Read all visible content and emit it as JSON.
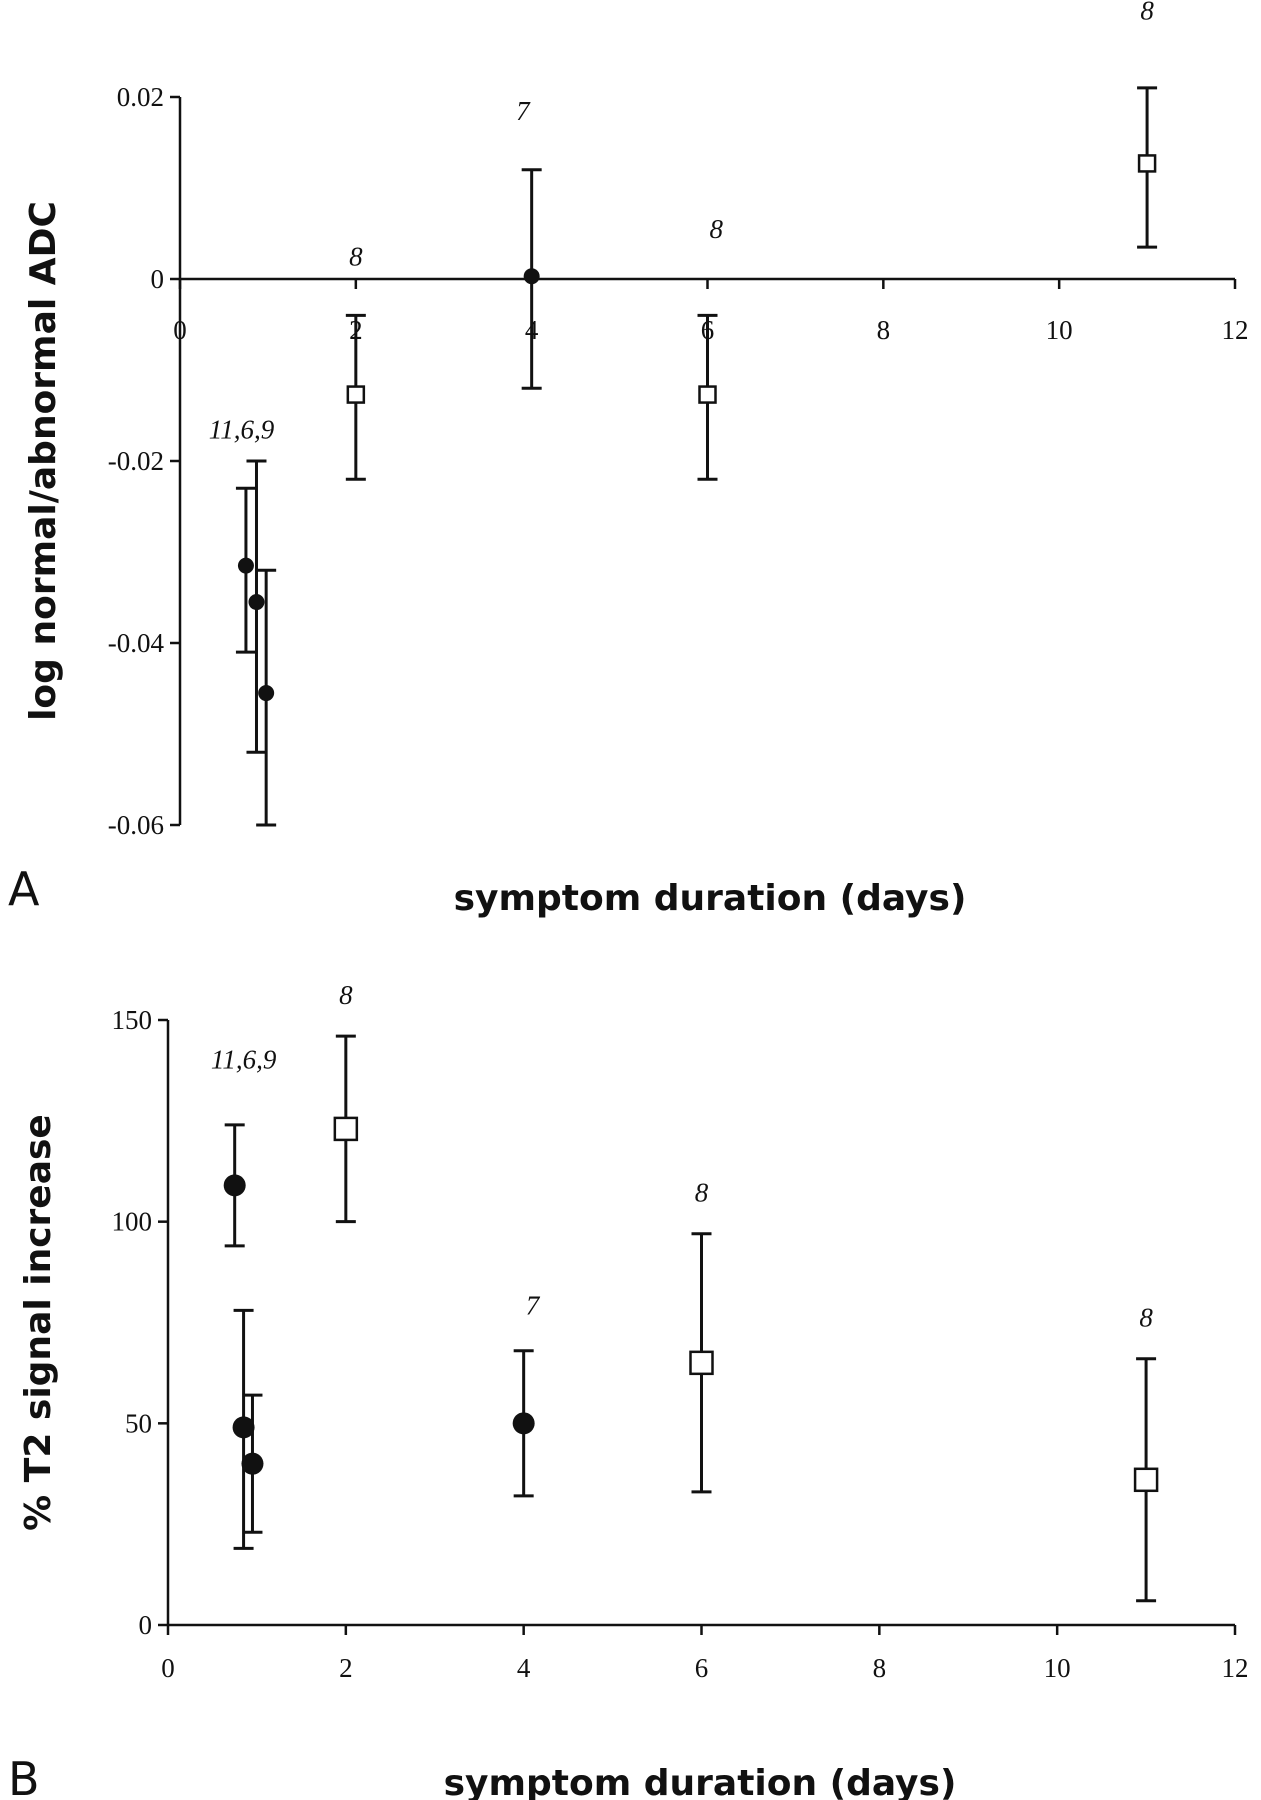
{
  "chart_data": [
    {
      "panel": "A",
      "type": "scatter",
      "xlabel": "symptom duration (days)",
      "ylabel": "log normal/abnormal ADC",
      "xlim": [
        0,
        12
      ],
      "ylim": [
        -0.06,
        0.02
      ],
      "xticks": [
        0,
        2,
        4,
        6,
        8,
        10,
        12
      ],
      "yticks": [
        -0.06,
        -0.04,
        -0.02,
        0,
        0.02
      ],
      "ytick_labels": [
        "-0.06",
        "-0.04",
        "-0.02",
        "0",
        "0.02"
      ],
      "x_axis_at": 0,
      "grid": false,
      "series": [
        {
          "marker": "filled-circle",
          "points": [
            {
              "x": 0.75,
              "y": -0.0315,
              "lo": -0.041,
              "hi": -0.023
            },
            {
              "x": 0.87,
              "y": -0.0355,
              "lo": -0.052,
              "hi": -0.02
            },
            {
              "x": 0.98,
              "y": -0.0455,
              "lo": -0.06,
              "hi": -0.032
            },
            {
              "x": 4.0,
              "y": 0.0003,
              "lo": -0.012,
              "hi": 0.012
            }
          ]
        },
        {
          "marker": "open-square",
          "points": [
            {
              "x": 2.0,
              "y": -0.0127,
              "lo": -0.022,
              "hi": -0.004
            },
            {
              "x": 6.0,
              "y": -0.0127,
              "lo": -0.022,
              "hi": -0.004
            },
            {
              "x": 11.0,
              "y": 0.0127,
              "lo": 0.0035,
              "hi": 0.021
            }
          ]
        }
      ],
      "annotations": [
        {
          "text": "11,6,9",
          "x": 0.7,
          "y": -0.0175
        },
        {
          "text": "8",
          "x": 2.0,
          "y": 0.0015
        },
        {
          "text": "7",
          "x": 3.9,
          "y": 0.0175
        },
        {
          "text": "8",
          "x": 6.1,
          "y": 0.0045
        },
        {
          "text": "8",
          "x": 11.0,
          "y": 0.0285
        }
      ]
    },
    {
      "panel": "B",
      "type": "scatter",
      "xlabel": "symptom duration (days)",
      "ylabel": "% T2 signal increase",
      "xlim": [
        0,
        12
      ],
      "ylim": [
        0,
        150
      ],
      "xticks": [
        0,
        2,
        4,
        6,
        8,
        10,
        12
      ],
      "yticks": [
        0,
        50,
        100,
        150
      ],
      "ytick_labels": [
        "0",
        "50",
        "100",
        "150"
      ],
      "x_axis_at": 0,
      "grid": false,
      "series": [
        {
          "marker": "filled-circle",
          "points": [
            {
              "x": 0.75,
              "y": 109,
              "lo": 94,
              "hi": 124
            },
            {
              "x": 0.85,
              "y": 49,
              "lo": 19,
              "hi": 78
            },
            {
              "x": 0.95,
              "y": 40,
              "lo": 23,
              "hi": 57
            },
            {
              "x": 4.0,
              "y": 50,
              "lo": 32,
              "hi": 68
            }
          ]
        },
        {
          "marker": "open-square",
          "points": [
            {
              "x": 2.0,
              "y": 123,
              "lo": 100,
              "hi": 146
            },
            {
              "x": 6.0,
              "y": 65,
              "lo": 33,
              "hi": 97
            },
            {
              "x": 11.0,
              "y": 36,
              "lo": 6,
              "hi": 66
            }
          ]
        }
      ],
      "annotations": [
        {
          "text": "11,6,9",
          "x": 0.85,
          "y": 138
        },
        {
          "text": "8",
          "x": 2.0,
          "y": 154
        },
        {
          "text": "7",
          "x": 4.1,
          "y": 77
        },
        {
          "text": "8",
          "x": 6.0,
          "y": 105
        },
        {
          "text": "8",
          "x": 11.0,
          "y": 74
        }
      ]
    }
  ],
  "panel_labels": [
    "A",
    "B"
  ]
}
